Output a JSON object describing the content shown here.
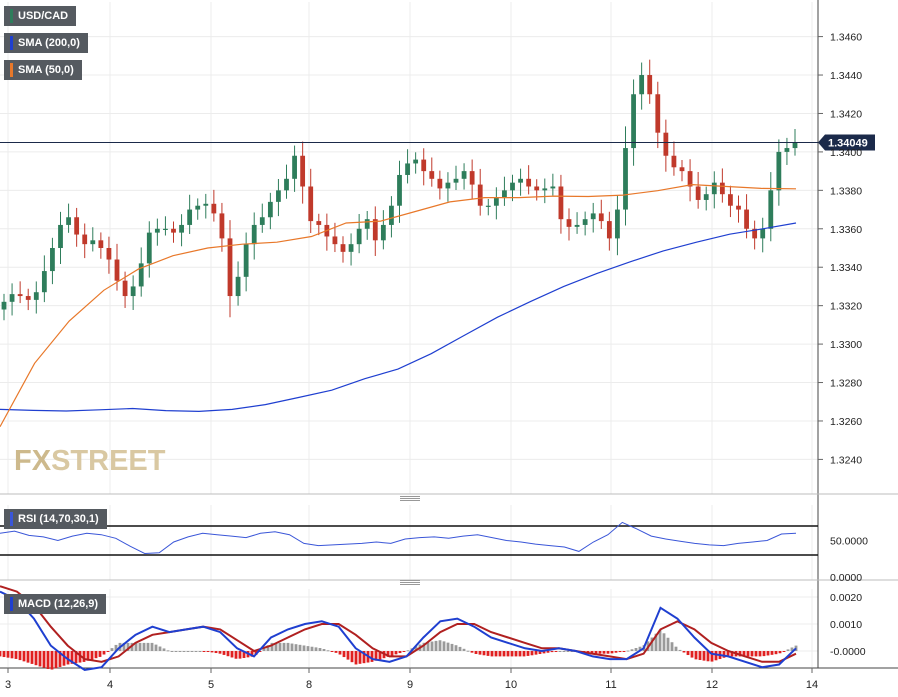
{
  "instrument": "USD/CAD",
  "legend": {
    "symbol": "USD/CAD",
    "sma200": "SMA (200,0)",
    "sma50": "SMA (50,0)",
    "rsi": "RSI (14,70,30,1)",
    "macd": "MACD (12,26,9)"
  },
  "watermark": {
    "fx": "FX",
    "street": "STREET"
  },
  "colors": {
    "up": "#2e7d5b",
    "down": "#c0392b",
    "sma200": "#1f3fd0",
    "sma50": "#e8782a",
    "price_line": "#1b2a4a",
    "rsi": "#3a56d8",
    "macd": "#1f3fd0",
    "signal": "#b02020",
    "hist_pos": "#9a9a9a",
    "hist_neg": "#e02020",
    "legend_bg": "#555a60"
  },
  "chart_data": [
    {
      "type": "candlestick",
      "title": "USD/CAD",
      "x_tick_labels": [
        "3",
        "4",
        "5",
        "8",
        "9",
        "10",
        "11",
        "12",
        "14"
      ],
      "y_ticks": [
        "1.3460",
        "1.3440",
        "1.3420",
        "1.3400",
        "1.3380",
        "1.3360",
        "1.3340",
        "1.3320",
        "1.3300",
        "1.3280",
        "1.3260",
        "1.3240"
      ],
      "ylim": [
        1.3222,
        1.3478
      ],
      "last_price": 1.34049,
      "last_price_label": "1.34049",
      "grid": true,
      "series": [
        {
          "name": "USD/CAD",
          "close_path": [
            [
              "3",
              1.3322
            ],
            [
              "3",
              1.3326
            ],
            [
              "3",
              1.3325
            ],
            [
              "3",
              1.3323
            ],
            [
              "3",
              1.3327
            ],
            [
              "3",
              1.3338
            ],
            [
              "3",
              1.335
            ],
            [
              "3",
              1.3362
            ],
            [
              "3",
              1.3366
            ],
            [
              "3",
              1.3357
            ],
            [
              "4",
              1.3352
            ],
            [
              "4",
              1.3354
            ],
            [
              "4",
              1.335
            ],
            [
              "4",
              1.3344
            ],
            [
              "4",
              1.3333
            ],
            [
              "4",
              1.3325
            ],
            [
              "4",
              1.333
            ],
            [
              "4",
              1.3342
            ],
            [
              "4",
              1.3358
            ],
            [
              "4",
              1.336
            ],
            [
              "5",
              1.336
            ],
            [
              "5",
              1.3358
            ],
            [
              "5",
              1.3362
            ],
            [
              "5",
              1.337
            ],
            [
              "5",
              1.3372
            ],
            [
              "5",
              1.3373
            ],
            [
              "5",
              1.3368
            ],
            [
              "5",
              1.3355
            ],
            [
              "5",
              1.3325
            ],
            [
              "5",
              1.3335
            ],
            [
              "8",
              1.3352
            ],
            [
              "8",
              1.3362
            ],
            [
              "8",
              1.3366
            ],
            [
              "8",
              1.3374
            ],
            [
              "8",
              1.338
            ],
            [
              "8",
              1.3386
            ],
            [
              "8",
              1.3398
            ],
            [
              "8",
              1.3382
            ],
            [
              "8",
              1.3364
            ],
            [
              "8",
              1.3362
            ],
            [
              "9",
              1.3356
            ],
            [
              "9",
              1.3352
            ],
            [
              "9",
              1.3348
            ],
            [
              "9",
              1.3352
            ],
            [
              "9",
              1.336
            ],
            [
              "9",
              1.3365
            ],
            [
              "9",
              1.3354
            ],
            [
              "9",
              1.3362
            ],
            [
              "9",
              1.3372
            ],
            [
              "9",
              1.3388
            ],
            [
              "10",
              1.3394
            ],
            [
              "10",
              1.3396
            ],
            [
              "10",
              1.339
            ],
            [
              "10",
              1.3386
            ],
            [
              "10",
              1.3381
            ],
            [
              "10",
              1.3384
            ],
            [
              "10",
              1.3386
            ],
            [
              "10",
              1.339
            ],
            [
              "10",
              1.3383
            ],
            [
              "10",
              1.3372
            ],
            [
              "11",
              1.3372
            ],
            [
              "11",
              1.3376
            ],
            [
              "11",
              1.338
            ],
            [
              "11",
              1.3384
            ],
            [
              "11",
              1.3386
            ],
            [
              "11",
              1.3382
            ],
            [
              "11",
              1.338
            ],
            [
              "11",
              1.3381
            ],
            [
              "11",
              1.3382
            ],
            [
              "11",
              1.3365
            ],
            [
              "12",
              1.3361
            ],
            [
              "12",
              1.3362
            ],
            [
              "12",
              1.3365
            ],
            [
              "12",
              1.3368
            ],
            [
              "12",
              1.3364
            ],
            [
              "12",
              1.3355
            ],
            [
              "12",
              1.337
            ],
            [
              "12",
              1.3402
            ],
            [
              "12",
              1.343
            ],
            [
              "12",
              1.344
            ],
            [
              "12",
              1.343
            ],
            [
              "12",
              1.341
            ],
            [
              "12",
              1.3398
            ],
            [
              "12",
              1.3392
            ],
            [
              "12",
              1.339
            ],
            [
              "12",
              1.3382
            ],
            [
              "12",
              1.3375
            ],
            [
              "12",
              1.3378
            ],
            [
              "12",
              1.3384
            ],
            [
              "12",
              1.3378
            ],
            [
              "12",
              1.3372
            ],
            [
              "12",
              1.337
            ],
            [
              "12",
              1.336
            ],
            [
              "12",
              1.3355
            ],
            [
              "12",
              1.336
            ],
            [
              "12",
              1.338
            ],
            [
              "12",
              1.34
            ],
            [
              "12",
              1.3402
            ],
            [
              "12",
              1.3405
            ]
          ]
        },
        {
          "name": "SMA (200,0)",
          "values": [
            1.3266,
            1.32655,
            1.32652,
            1.32658,
            1.32665,
            1.32654,
            1.3265,
            1.3266,
            1.32685,
            1.32722,
            1.3276,
            1.3282,
            1.3287,
            1.3295,
            1.33045,
            1.3314,
            1.33222,
            1.333,
            1.33368,
            1.33428,
            1.33485,
            1.3353,
            1.33572,
            1.336,
            1.3363
          ]
        },
        {
          "name": "SMA (50,0)",
          "values": [
            1.3257,
            1.329,
            1.3312,
            1.3328,
            1.3339,
            1.3346,
            1.335,
            1.3352,
            1.3353,
            1.3356,
            1.3363,
            1.3364,
            1.3369,
            1.3374,
            1.33762,
            1.33762,
            1.3377,
            1.33768,
            1.33775,
            1.33798,
            1.3383,
            1.3382,
            1.3381,
            1.33808
          ]
        }
      ]
    },
    {
      "type": "line",
      "title": "RSI (14,70,30,1)",
      "y_ticks": [
        "50.0000",
        "0.0000"
      ],
      "reference_levels": [
        70,
        30
      ],
      "ylim": [
        0,
        100
      ],
      "series": [
        {
          "name": "RSI (14,70,30,1)",
          "values": [
            60,
            63,
            57,
            55,
            50,
            56,
            60,
            58,
            53,
            42,
            32,
            33,
            48,
            55,
            60,
            58,
            56,
            54,
            60,
            62,
            58,
            46,
            43,
            44,
            45,
            46,
            48,
            46,
            52,
            54,
            55,
            53,
            56,
            58,
            54,
            50,
            48,
            45,
            43,
            41,
            35,
            48,
            58,
            75,
            66,
            56,
            52,
            49,
            46,
            44,
            43,
            46,
            48,
            50,
            59,
            60
          ]
        }
      ]
    },
    {
      "type": "bar",
      "title": "MACD (12,26,9)",
      "y_ticks": [
        "0.0020",
        "0.0010",
        "-0.0000"
      ],
      "ylim": [
        -0.0011,
        0.0026
      ],
      "series": [
        {
          "name": "MACD",
          "values": [
            0.0022,
            0.0019,
            0.0012,
            0.0002,
            -0.0003,
            -0.0007,
            -0.0006,
            0.0001,
            0.0006,
            0.0009,
            0.0007,
            0.0008,
            0.0009,
            0.0007,
            0.0001,
            -0.0002,
            0.0005,
            0.0008,
            0.001,
            0.0011,
            0.0009,
            0.0001,
            -0.0003,
            -0.0004,
            -0.0002,
            0.0005,
            0.0011,
            0.0012,
            0.0009,
            0.0005,
            0.0003,
            0.0001,
            0.0,
            0.0001,
            0.0,
            -0.0002,
            -0.0003,
            -0.0003,
            0.0001,
            0.0016,
            0.0012,
            0.0005,
            -0.0001,
            -0.0002,
            -0.0004,
            -0.0006,
            -0.0005,
            0.0001
          ]
        },
        {
          "name": "Signal",
          "values": [
            0.0024,
            0.0022,
            0.0017,
            0.0009,
            0.0002,
            -0.0003,
            -0.0004,
            -0.0002,
            0.0003,
            0.0006,
            0.0007,
            0.0008,
            0.0009,
            0.0008,
            0.0004,
            0.0,
            0.0002,
            0.0005,
            0.0008,
            0.001,
            0.001,
            0.0006,
            0.0001,
            -0.0002,
            -0.0002,
            0.0002,
            0.0007,
            0.001,
            0.001,
            0.0007,
            0.0005,
            0.0003,
            0.0001,
            0.0001,
            0.0,
            -0.0001,
            -0.0002,
            -0.0003,
            -0.0001,
            0.0008,
            0.0011,
            0.0008,
            0.0003,
            0.0,
            -0.0002,
            -0.0004,
            -0.0004,
            -0.0001
          ]
        }
      ]
    }
  ]
}
